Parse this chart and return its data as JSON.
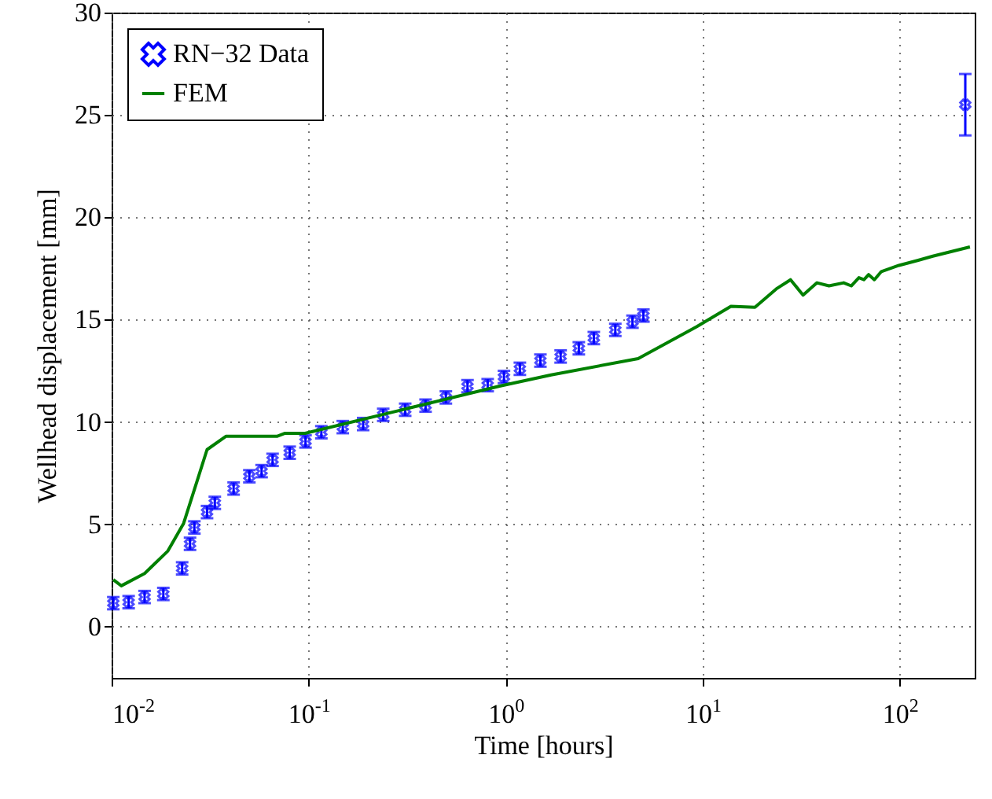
{
  "chart_data": {
    "type": "scatter",
    "xlabel": "Time [hours]",
    "ylabel": "Wellhead displacement [mm]",
    "log": "x",
    "grid": true,
    "legend": "top left",
    "xlim": [
      0.01,
      240
    ],
    "xticks": [
      {
        "value": 0.01,
        "label": "10$^{-2}$"
      },
      {
        "value": 0.1,
        "label": "10$^{-1}$"
      },
      {
        "value": 1,
        "label": "10$^{0}$"
      },
      {
        "value": 10,
        "label": "10$^{1}$"
      },
      {
        "value": 100,
        "label": "10$^{2}$"
      }
    ],
    "ylim": [
      -2.5,
      30
    ],
    "yticks": [
      0,
      5,
      10,
      15,
      20,
      25,
      30
    ],
    "series": [
      {
        "name": "RN−32 Data",
        "marker": "cross",
        "color": "#0000ff",
        "x": [
          0.0102,
          0.0122,
          0.0147,
          0.0183,
          0.0228,
          0.025,
          0.0263,
          0.0305,
          0.0334,
          0.0416,
          0.05,
          0.0577,
          0.0656,
          0.0801,
          0.0964,
          0.116,
          0.149,
          0.189,
          0.239,
          0.309,
          0.392,
          0.497,
          0.64,
          0.81,
          0.98,
          1.18,
          1.5,
          1.9,
          2.35,
          2.8,
          3.6,
          4.4,
          5.0
        ],
        "values": [
          1.15,
          1.2,
          1.45,
          1.6,
          2.85,
          4.05,
          4.85,
          5.6,
          6.05,
          6.75,
          7.35,
          7.6,
          8.15,
          8.5,
          9.05,
          9.5,
          9.75,
          9.9,
          10.35,
          10.6,
          10.8,
          11.2,
          11.75,
          11.8,
          12.2,
          12.6,
          13.0,
          13.2,
          13.6,
          14.1,
          14.5,
          14.9,
          15.2
        ],
        "errors": [
          0.3,
          0.3,
          0.3,
          0.3,
          0.3,
          0.3,
          0.3,
          0.3,
          0.3,
          0.3,
          0.3,
          0.3,
          0.3,
          0.3,
          0.3,
          0.3,
          0.3,
          0.3,
          0.3,
          0.3,
          0.3,
          0.3,
          0.3,
          0.3,
          0.3,
          0.3,
          0.3,
          0.3,
          0.3,
          0.3,
          0.3,
          0.3,
          0.3
        ]
      },
      {
        "name": "FEM",
        "type": "line",
        "marker": "none",
        "color": "#008000",
        "x": [
          0.0102,
          0.0112,
          0.0147,
          0.0193,
          0.0232,
          0.0305,
          0.038,
          0.069,
          0.0759,
          0.096,
          0.93,
          1.7,
          4.7,
          9.3,
          13.9,
          18.4,
          23.6,
          27.9,
          32.3,
          38.0,
          43.7,
          51.9,
          56.7,
          62,
          65.8,
          69.5,
          74.3,
          80.6,
          99,
          124,
          147,
          227
        ],
        "values": [
          2.3,
          2.0,
          2.6,
          3.7,
          5.05,
          8.65,
          9.3,
          9.3,
          9.45,
          9.45,
          11.75,
          12.3,
          13.1,
          14.65,
          15.65,
          15.6,
          16.5,
          16.95,
          16.2,
          16.8,
          16.65,
          16.8,
          16.65,
          17.05,
          16.95,
          17.2,
          16.95,
          17.35,
          17.65,
          17.9,
          18.1,
          18.55
        ]
      },
      {
        "marker": "cross",
        "color": "#0000ff",
        "x": [
          215
        ],
        "values": [
          25.5
        ],
        "errors": [
          1.5
        ]
      }
    ]
  }
}
